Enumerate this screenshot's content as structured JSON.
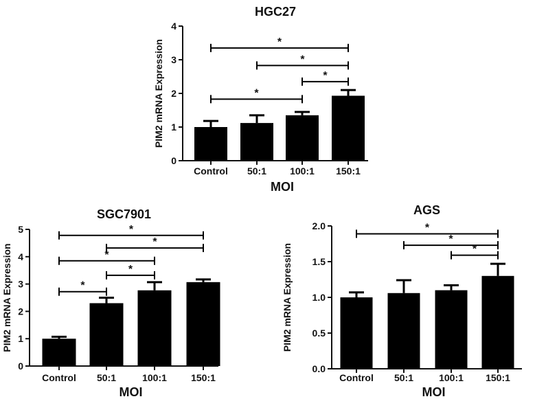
{
  "chart_data": [
    {
      "type": "bar",
      "title": "HGC27",
      "xlabel": "MOI",
      "ylabel": "PIM2 mRNA Expression",
      "categories": [
        "Control",
        "50:1",
        "100:1",
        "150:1"
      ],
      "values": [
        1.0,
        1.12,
        1.35,
        1.93
      ],
      "errors": [
        0.18,
        0.23,
        0.1,
        0.17
      ],
      "ylim": [
        0,
        4
      ],
      "yticks": [
        0,
        1,
        2,
        3,
        4
      ],
      "ytick_labels": [
        "0",
        "1",
        "2",
        "3",
        "4"
      ],
      "significance": [
        {
          "from": 0,
          "to": 3,
          "y": 3.35,
          "label": "*"
        },
        {
          "from": 1,
          "to": 3,
          "y": 2.83,
          "label": "*"
        },
        {
          "from": 2,
          "to": 3,
          "y": 2.35,
          "label": "*"
        },
        {
          "from": 0,
          "to": 2,
          "y": 1.83,
          "label": "*"
        }
      ]
    },
    {
      "type": "bar",
      "title": "SGC7901",
      "xlabel": "MOI",
      "ylabel": "PIM2 mRNA Expression",
      "categories": [
        "Control",
        "50:1",
        "100:1",
        "150:1"
      ],
      "values": [
        1.0,
        2.3,
        2.77,
        3.07
      ],
      "errors": [
        0.07,
        0.2,
        0.3,
        0.1
      ],
      "ylim": [
        0,
        5
      ],
      "yticks": [
        0,
        1,
        2,
        3,
        4,
        5
      ],
      "ytick_labels": [
        "0",
        "1",
        "2",
        "3",
        "4",
        "5"
      ],
      "significance": [
        {
          "from": 0,
          "to": 3,
          "y": 4.78,
          "label": "*"
        },
        {
          "from": 1,
          "to": 3,
          "y": 4.32,
          "label": "*"
        },
        {
          "from": 0,
          "to": 2,
          "y": 3.85,
          "label": "*"
        },
        {
          "from": 1,
          "to": 2,
          "y": 3.32,
          "label": "*"
        },
        {
          "from": 0,
          "to": 1,
          "y": 2.72,
          "label": "*"
        }
      ]
    },
    {
      "type": "bar",
      "title": "AGS",
      "xlabel": "MOI",
      "ylabel": "PIM2 mRNA Expression",
      "categories": [
        "Control",
        "50:1",
        "100:1",
        "150:1"
      ],
      "values": [
        1.0,
        1.06,
        1.1,
        1.3
      ],
      "errors": [
        0.07,
        0.18,
        0.07,
        0.17
      ],
      "ylim": [
        0,
        2.0
      ],
      "yticks": [
        0,
        0.5,
        1.0,
        1.5,
        2.0
      ],
      "ytick_labels": [
        "0.0",
        "0.5",
        "1.0",
        "1.5",
        "2.0"
      ],
      "significance": [
        {
          "from": 0,
          "to": 3,
          "y": 1.89,
          "label": "*"
        },
        {
          "from": 1,
          "to": 3,
          "y": 1.73,
          "label": "*"
        },
        {
          "from": 2,
          "to": 3,
          "y": 1.59,
          "label": "*"
        }
      ]
    }
  ]
}
